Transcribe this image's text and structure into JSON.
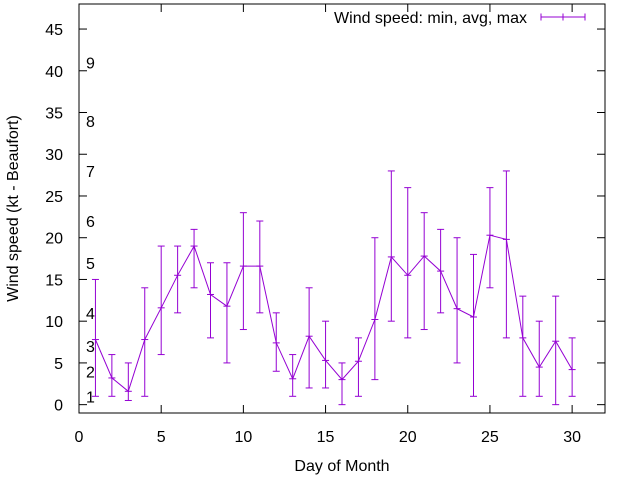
{
  "chart_data": {
    "type": "line",
    "title": "",
    "xlabel": "Day of Month",
    "ylabel": "Wind speed (kt - Beaufort)",
    "xlim": [
      0,
      32
    ],
    "ylim": [
      -1,
      48
    ],
    "x_ticks": [
      0,
      5,
      10,
      15,
      20,
      25,
      30
    ],
    "y_ticks": [
      0,
      5,
      10,
      15,
      20,
      25,
      30,
      35,
      40,
      45
    ],
    "grid": false,
    "legend_position": "top-right",
    "series": [
      {
        "name": "Wind speed: min, avg, max",
        "color": "#9400d3",
        "x": [
          1,
          2,
          3,
          4,
          5,
          6,
          7,
          8,
          9,
          10,
          11,
          12,
          13,
          14,
          15,
          16,
          17,
          18,
          19,
          20,
          21,
          22,
          23,
          24,
          25,
          26,
          27,
          28,
          29,
          30
        ],
        "avg": [
          7.8,
          3.2,
          1.6,
          7.8,
          11.6,
          15.5,
          19,
          13.2,
          11.8,
          16.6,
          16.6,
          7.4,
          3.1,
          8.2,
          5.3,
          3,
          5.2,
          10.2,
          17.7,
          15.5,
          17.8,
          16,
          11.5,
          10.5,
          20.3,
          19.8,
          8,
          4.5,
          7.6,
          4.2
        ],
        "min": [
          1,
          1,
          0.5,
          1,
          6,
          11,
          14,
          8,
          5,
          9,
          11,
          4,
          1,
          2,
          2,
          0,
          1,
          3,
          10,
          8,
          9,
          11,
          5,
          1,
          14,
          8,
          1,
          1,
          0,
          1
        ],
        "max": [
          15,
          6,
          5,
          14,
          19,
          19,
          21,
          17,
          17,
          23,
          22,
          11,
          6,
          14,
          10,
          5,
          8,
          20,
          28,
          26,
          23,
          21,
          20,
          18,
          26,
          28,
          13,
          10,
          13,
          8
        ]
      }
    ],
    "beaufort_scale": [
      {
        "label": "1",
        "value": 1
      },
      {
        "label": "2",
        "value": 4
      },
      {
        "label": "3",
        "value": 7
      },
      {
        "label": "4",
        "value": 11
      },
      {
        "label": "5",
        "value": 17
      },
      {
        "label": "6",
        "value": 22
      },
      {
        "label": "7",
        "value": 28
      },
      {
        "label": "8",
        "value": 34
      },
      {
        "label": "9",
        "value": 41
      }
    ]
  }
}
